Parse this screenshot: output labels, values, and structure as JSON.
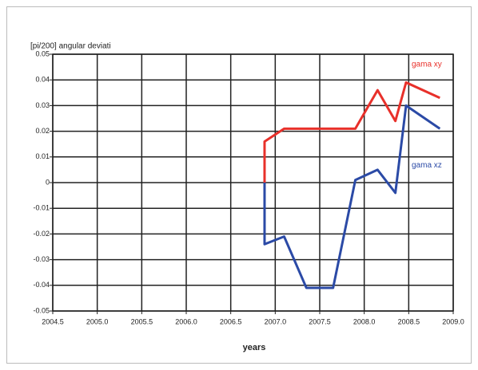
{
  "chart_data": {
    "type": "line",
    "title": "[pi/200] angular deviati",
    "x_label": "years",
    "series": [
      {
        "name": "gama xy",
        "color": "#e8302a",
        "x": [
          2006.88,
          2006.88,
          2007.1,
          2007.9,
          2008.15,
          2008.35,
          2008.47,
          2008.85
        ],
        "values": [
          0,
          0.016,
          0.021,
          0.021,
          0.036,
          0.024,
          0.039,
          0.033
        ]
      },
      {
        "name": "gama xz",
        "color": "#2b4aa6",
        "x": [
          2006.88,
          2006.88,
          2007.1,
          2007.35,
          2007.65,
          2007.9,
          2008.15,
          2008.35,
          2008.47,
          2008.85
        ],
        "values": [
          0,
          -0.024,
          -0.021,
          -0.041,
          -0.041,
          0.001,
          0.005,
          -0.004,
          0.03,
          0.021
        ]
      }
    ],
    "xlim": [
      2004.5,
      2009.0
    ],
    "xticks": [
      2004.5,
      {
        "value": 2005,
        "label": "2005.0"
      },
      2005.5,
      {
        "value": 2006,
        "label": "2006.0"
      },
      2006.5,
      {
        "value": 2007,
        "label": "2007.0"
      },
      2007.5,
      {
        "value": 2008,
        "label": "2008.0"
      },
      2008.5,
      {
        "value": 2009,
        "label": "2009.0"
      }
    ],
    "ylim": [
      -0.05,
      0.05
    ],
    "yticks": [
      -0.05,
      -0.04,
      -0.03,
      -0.02,
      -0.01,
      0,
      0.01,
      0.02,
      0.03,
      0.04,
      0.05
    ],
    "grid": true
  }
}
